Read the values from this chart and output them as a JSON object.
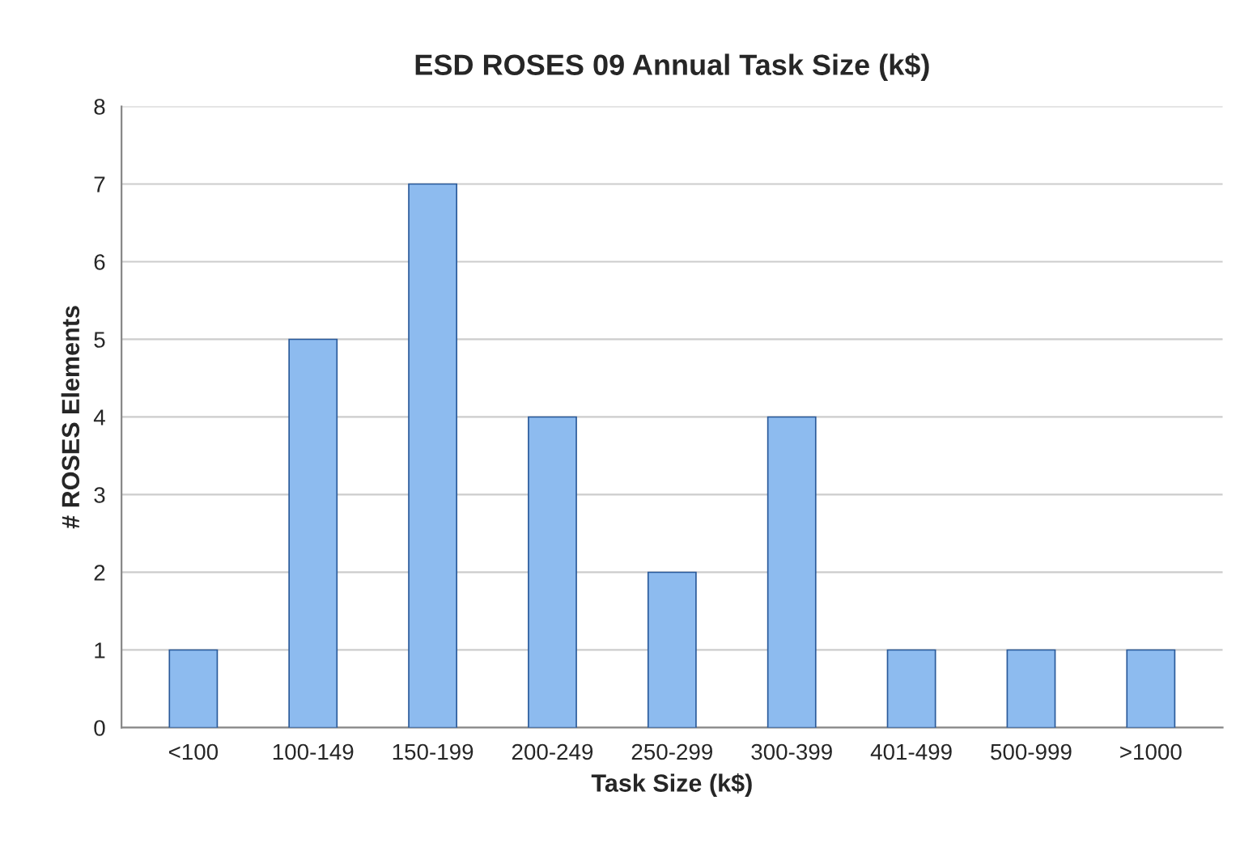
{
  "chart_data": {
    "type": "bar",
    "title": "ESD ROSES 09 Annual Task Size (k$)",
    "xlabel": "Task Size (k$)",
    "ylabel": "# ROSES Elements",
    "categories": [
      "<100",
      "100-149",
      "150-199",
      "200-249",
      "250-299",
      "300-399",
      "401-499",
      "500-999",
      ">1000"
    ],
    "values": [
      1,
      5,
      7,
      4,
      2,
      4,
      1,
      1,
      1
    ],
    "color": "#8dbbef",
    "ylim": [
      0,
      8
    ],
    "yticks": [
      0,
      1,
      2,
      3,
      4,
      5,
      6,
      7,
      8
    ],
    "grid": "y"
  }
}
